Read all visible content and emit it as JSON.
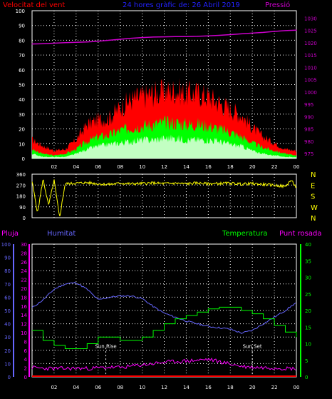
{
  "header": {
    "wind_title": "Velocitat del vent",
    "subtitle": "24 hores gràfic de: 26 Abril 2019",
    "pressure_title": "Pressió"
  },
  "colors": {
    "wind_gust": "#ff0000",
    "wind_avg": "#00ff00",
    "wind_low": "#ccffcc",
    "pressure": "#cc00cc",
    "direction": "#ffff00",
    "humidity": "#6666ff",
    "temperature": "#00ff00",
    "dewpoint": "#ff00ff",
    "rain": "#ff0000",
    "grid": "#ffffff",
    "sun_marker": "#ffffff"
  },
  "chart_data": [
    {
      "type": "area",
      "panel": "wind-pressure",
      "title": "Velocitat del vent",
      "ylabel": "",
      "x_tick_labels": [
        "02",
        "04",
        "06",
        "08",
        "10",
        "12",
        "14",
        "16",
        "18",
        "20",
        "22",
        "00"
      ],
      "y_left_ticks": [
        0,
        10,
        20,
        30,
        40,
        50,
        60,
        70,
        80,
        90,
        100
      ],
      "ylim_left": [
        0,
        100
      ],
      "y_right_ticks": [
        975,
        980,
        985,
        990,
        995,
        1000,
        1005,
        1010,
        1015,
        1020,
        1025,
        1030
      ],
      "ylim_right": [
        973,
        1033
      ],
      "hours": [
        0,
        1,
        2,
        3,
        4,
        5,
        6,
        7,
        8,
        9,
        10,
        11,
        12,
        13,
        14,
        15,
        16,
        17,
        18,
        19,
        20,
        21,
        22,
        23,
        24
      ],
      "series": [
        {
          "name": "Velocitat del vent",
          "axis": "left",
          "values": [
            12,
            8,
            5,
            6,
            12,
            22,
            25,
            26,
            33,
            38,
            40,
            42,
            43,
            44,
            42,
            42,
            40,
            36,
            32,
            28,
            20,
            14,
            10,
            6,
            5
          ]
        },
        {
          "name": "",
          "axis": "left",
          "values": [
            6,
            3,
            2,
            3,
            6,
            11,
            14,
            15,
            18,
            20,
            21,
            22,
            23,
            23,
            22,
            22,
            21,
            19,
            17,
            14,
            10,
            7,
            5,
            3,
            2
          ]
        },
        {
          "name": "",
          "axis": "left",
          "values": [
            3,
            1,
            1,
            1,
            3,
            6,
            8,
            9,
            10,
            11,
            12,
            12,
            13,
            13,
            12,
            12,
            12,
            11,
            9,
            8,
            5,
            3,
            2,
            1,
            1
          ]
        },
        {
          "name": "Pressió",
          "axis": "right",
          "values": [
            1019.5,
            1019.6,
            1019.8,
            1020.0,
            1020.2,
            1020.3,
            1020.6,
            1021.0,
            1021.4,
            1021.8,
            1022.1,
            1022.3,
            1022.4,
            1022.5,
            1022.5,
            1022.6,
            1022.8,
            1023.0,
            1023.3,
            1023.6,
            1023.9,
            1024.2,
            1024.6,
            1024.9,
            1025.1
          ]
        }
      ]
    },
    {
      "type": "line",
      "panel": "wind-direction",
      "y_left_ticks": [
        0,
        90,
        180,
        270,
        360
      ],
      "ylim": [
        0,
        360
      ],
      "y_right_labels": [
        "N",
        "W",
        "S",
        "E",
        "N"
      ],
      "hours": [
        0,
        0.5,
        1,
        1.5,
        2,
        2.5,
        3,
        4,
        5,
        6,
        7,
        8,
        9,
        10,
        11,
        12,
        13,
        14,
        15,
        16,
        17,
        18,
        19,
        20,
        21,
        22,
        23,
        23.5,
        24
      ],
      "series": [
        {
          "name": "",
          "values": [
            300,
            40,
            320,
            100,
            310,
            0,
            280,
            285,
            290,
            280,
            275,
            285,
            280,
            283,
            287,
            282,
            285,
            280,
            287,
            280,
            283,
            285,
            278,
            282,
            275,
            268,
            258,
            310,
            250
          ]
        }
      ]
    },
    {
      "type": "line",
      "panel": "humidity-temperature",
      "legend": [
        "Pluja",
        "Humitat",
        "Temperatura",
        "Punt rosada"
      ],
      "annotations": [
        "Sun Rise",
        "Sun Set"
      ],
      "y_left_humidity_ticks": [
        0,
        10,
        20,
        30,
        40,
        50,
        60,
        70,
        80,
        90,
        100
      ],
      "y_left_rain_ticks": [
        0,
        2,
        4,
        6,
        8,
        10,
        12,
        14,
        16,
        18,
        20,
        22,
        24,
        26,
        28,
        30
      ],
      "y_right_ticks": [
        0,
        5,
        10,
        15,
        20,
        25,
        30,
        35,
        40
      ],
      "ylim_left": [
        0,
        100
      ],
      "ylim_right": [
        0,
        40
      ],
      "hours": [
        0,
        1,
        2,
        3,
        4,
        5,
        6,
        7,
        8,
        9,
        10,
        11,
        12,
        13,
        14,
        15,
        16,
        17,
        18,
        19,
        20,
        21,
        22,
        23,
        24
      ],
      "series": [
        {
          "name": "Humitat",
          "axis": "left",
          "values": [
            52,
            58,
            66,
            70,
            71,
            66,
            58,
            60,
            61,
            61,
            59,
            53,
            48,
            45,
            42,
            40,
            38,
            37,
            36,
            33,
            35,
            40,
            45,
            50,
            56
          ]
        },
        {
          "name": "Temperatura",
          "axis": "right",
          "values": [
            14,
            11,
            9.5,
            8.5,
            8.5,
            10,
            12,
            12,
            11,
            11,
            12,
            14,
            16,
            17.5,
            18.5,
            19.5,
            20.5,
            21,
            21,
            20,
            19,
            17.5,
            15.5,
            13.5,
            12
          ]
        },
        {
          "name": "Punt rosada",
          "axis": "right",
          "values": [
            2.8,
            2.6,
            2.5,
            2.5,
            2.6,
            2.5,
            2.7,
            2.9,
            2.8,
            3.2,
            3.6,
            4.0,
            4.4,
            4.6,
            4.8,
            5.0,
            5.3,
            4.6,
            3.9,
            3.2,
            2.9,
            2.8,
            2.8,
            2.6,
            2.5
          ]
        },
        {
          "name": "Pluja",
          "axis": "left",
          "values": [
            0,
            0,
            0,
            0,
            0,
            0,
            0,
            0,
            0,
            0,
            0,
            0,
            0,
            0,
            0,
            0,
            0,
            0,
            0,
            0,
            0,
            0,
            0,
            0,
            0
          ]
        }
      ],
      "sun_rise_hour": 6.7,
      "sun_set_hour": 20.0
    }
  ]
}
